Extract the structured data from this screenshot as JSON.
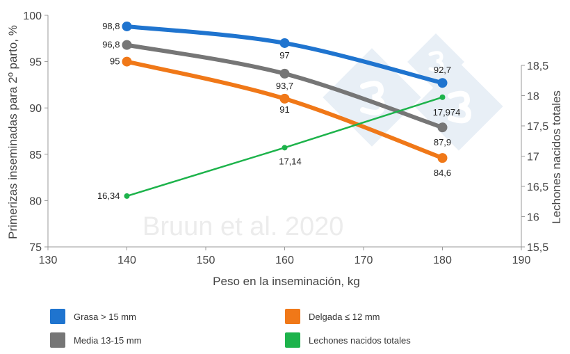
{
  "chart_data": {
    "type": "line",
    "watermark": "Bruun et al. 2020",
    "xlabel": "Peso en la inseminación, kg",
    "ylabel": "Primerizas inseminadas para 2º parto, %",
    "y2label": "Lechones nacidos totales",
    "xlim": [
      130,
      190
    ],
    "ylim": [
      75,
      100
    ],
    "y2lim": [
      15.5,
      18.5
    ],
    "xticks": [
      "130",
      "140",
      "150",
      "160",
      "170",
      "180",
      "190"
    ],
    "yticks": [
      "75",
      "80",
      "85",
      "90",
      "95",
      "100"
    ],
    "y2ticks": [
      "15,5",
      "16",
      "16,5",
      "17",
      "17,5",
      "18",
      "18,5"
    ],
    "grid": false,
    "legend_position": "bottom",
    "x": [
      140,
      160,
      180
    ],
    "series": [
      {
        "name": "Grasa > 15 mm",
        "axis": "left",
        "color": "#1f74cf",
        "values": [
          98.8,
          97,
          92.7
        ],
        "labels": [
          "98,8",
          "97",
          "92,7"
        ]
      },
      {
        "name": "Media 13-15 mm",
        "axis": "left",
        "color": "#767676",
        "values": [
          96.8,
          93.7,
          87.9
        ],
        "labels": [
          "96,8",
          "93,7",
          "87,9"
        ]
      },
      {
        "name": "Delgada ≤ 12 mm",
        "axis": "left",
        "color": "#f07818",
        "values": [
          95,
          91,
          84.6
        ],
        "labels": [
          "95",
          "91",
          "84,6"
        ]
      },
      {
        "name": "Lechones nacidos totales",
        "axis": "right",
        "color": "#1db34b",
        "values": [
          16.34,
          17.14,
          17.974
        ],
        "labels": [
          "16,34",
          "17,14",
          "17,974"
        ]
      }
    ]
  }
}
